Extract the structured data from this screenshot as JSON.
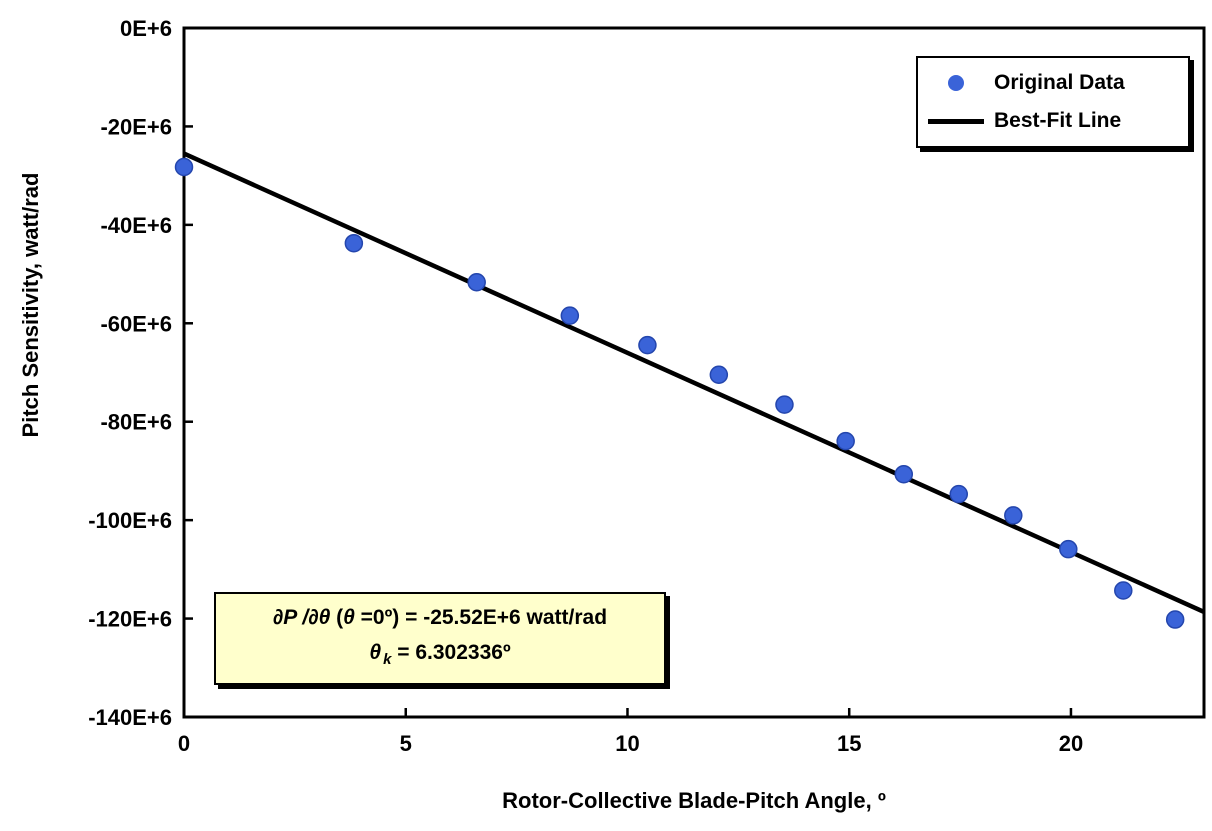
{
  "chart_data": {
    "type": "scatter",
    "title": "",
    "xlabel": "Rotor-Collective Blade-Pitch Angle, º",
    "ylabel": "Pitch Sensitivity, watt/rad",
    "xlim": [
      0,
      23
    ],
    "ylim": [
      -140,
      0
    ],
    "y_unit": "E+6 watt/rad",
    "grid": false,
    "legend_position": "top-right",
    "x_ticks": [
      {
        "v": 0,
        "label": "0"
      },
      {
        "v": 5,
        "label": "5"
      },
      {
        "v": 10,
        "label": "10"
      },
      {
        "v": 15,
        "label": "15"
      },
      {
        "v": 20,
        "label": "20"
      }
    ],
    "y_ticks": [
      {
        "v": 0,
        "label": "0E+6"
      },
      {
        "v": -20,
        "label": "-20E+6"
      },
      {
        "v": -40,
        "label": "-40E+6"
      },
      {
        "v": -60,
        "label": "-60E+6"
      },
      {
        "v": -80,
        "label": "-80E+6"
      },
      {
        "v": -100,
        "label": "-100E+6"
      },
      {
        "v": -120,
        "label": "-120E+6"
      },
      {
        "v": -140,
        "label": "-140E+6"
      }
    ],
    "series": [
      {
        "name": "Original Data",
        "type": "scatter",
        "x": [
          0.0,
          3.83,
          6.6,
          8.7,
          10.45,
          12.06,
          13.54,
          14.92,
          16.23,
          17.47,
          18.7,
          19.94,
          21.18,
          22.35
        ],
        "y_E6": [
          -28.24,
          -43.73,
          -51.66,
          -58.44,
          -64.44,
          -70.46,
          -76.53,
          -83.94,
          -90.67,
          -94.71,
          -99.04,
          -105.9,
          -114.3,
          -120.2
        ]
      },
      {
        "name": "Best-Fit Line",
        "type": "line",
        "x": [
          0,
          23
        ],
        "y_E6": [
          -25.52,
          -118.65
        ]
      }
    ],
    "legend": {
      "entries": [
        {
          "label": "Original Data",
          "marker": "dot"
        },
        {
          "label": "Best-Fit Line",
          "marker": "line"
        }
      ]
    },
    "annotation": {
      "l1_p1": "∂P /∂θ ",
      "l1_p2": "(",
      "l1_p3": "θ ",
      "l1_p4": "=0º) = -25.52E+6 watt/rad",
      "l2_sym": "θ",
      "l2_sub": "k",
      "l2_rest": " = 6.302336º"
    },
    "colors": {
      "marker": "#3a63d8",
      "marker_edge": "#2446ad",
      "line": "#000000",
      "annotation_bg": "#ffffcc"
    }
  }
}
